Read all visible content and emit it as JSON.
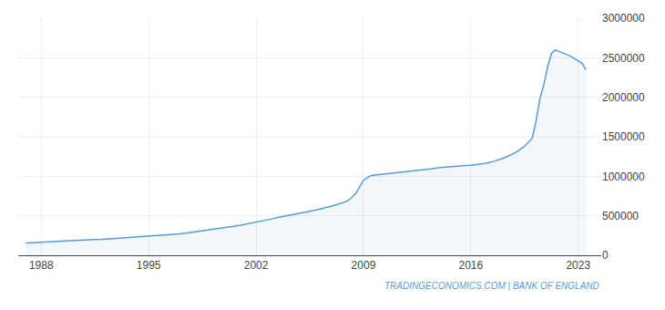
{
  "chart_data": {
    "type": "line",
    "x": [
      1987.0,
      1987.5,
      1988.0,
      1988.5,
      1989.0,
      1989.5,
      1990.0,
      1990.5,
      1991.0,
      1991.5,
      1992.0,
      1992.5,
      1993.0,
      1993.5,
      1994.0,
      1994.5,
      1995.0,
      1995.5,
      1996.0,
      1996.5,
      1997.0,
      1997.5,
      1998.0,
      1998.5,
      1999.0,
      1999.5,
      2000.0,
      2000.5,
      2001.0,
      2001.5,
      2002.0,
      2002.5,
      2003.0,
      2003.5,
      2004.0,
      2004.5,
      2005.0,
      2005.5,
      2006.0,
      2006.5,
      2007.0,
      2007.5,
      2008.0,
      2008.5,
      2009.0,
      2009.5,
      2010.0,
      2010.5,
      2011.0,
      2011.5,
      2012.0,
      2012.5,
      2013.0,
      2013.5,
      2014.0,
      2014.5,
      2015.0,
      2015.5,
      2016.0,
      2016.5,
      2017.0,
      2017.5,
      2018.0,
      2018.5,
      2019.0,
      2019.5,
      2020.0,
      2020.25,
      2020.5,
      2020.75,
      2021.0,
      2021.25,
      2021.5,
      2021.75,
      2022.0,
      2022.25,
      2022.5,
      2022.75,
      2023.0,
      2023.25,
      2023.5
    ],
    "values": [
      155000,
      158000,
      163000,
      168000,
      175000,
      182000,
      188000,
      192000,
      195000,
      198000,
      202000,
      208000,
      215000,
      222000,
      228000,
      233000,
      238000,
      244000,
      252000,
      260000,
      270000,
      282000,
      295000,
      308000,
      322000,
      336000,
      352000,
      366000,
      382000,
      400000,
      418000,
      438000,
      460000,
      482000,
      503000,
      520000,
      538000,
      558000,
      578000,
      600000,
      625000,
      655000,
      690000,
      780000,
      950000,
      1010000,
      1020000,
      1030000,
      1040000,
      1050000,
      1060000,
      1070000,
      1080000,
      1095000,
      1110000,
      1120000,
      1130000,
      1135000,
      1140000,
      1150000,
      1165000,
      1190000,
      1220000,
      1260000,
      1310000,
      1380000,
      1480000,
      1700000,
      1980000,
      2150000,
      2380000,
      2550000,
      2600000,
      2580000,
      2560000,
      2540000,
      2520000,
      2490000,
      2460000,
      2430000,
      2350000
    ],
    "color": "#5b9bd5",
    "xlim": [
      1986.5,
      2024.5
    ],
    "xticks": [
      1988,
      1995,
      2002,
      2009,
      2016,
      2023
    ],
    "ylim": [
      0,
      3000000
    ],
    "yticks": [
      0,
      500000,
      1000000,
      1500000,
      2000000,
      2500000,
      3000000
    ],
    "grid": true,
    "annotations": [
      "TRADINGECONOMICS.COM | BANK OF ENGLAND"
    ]
  }
}
